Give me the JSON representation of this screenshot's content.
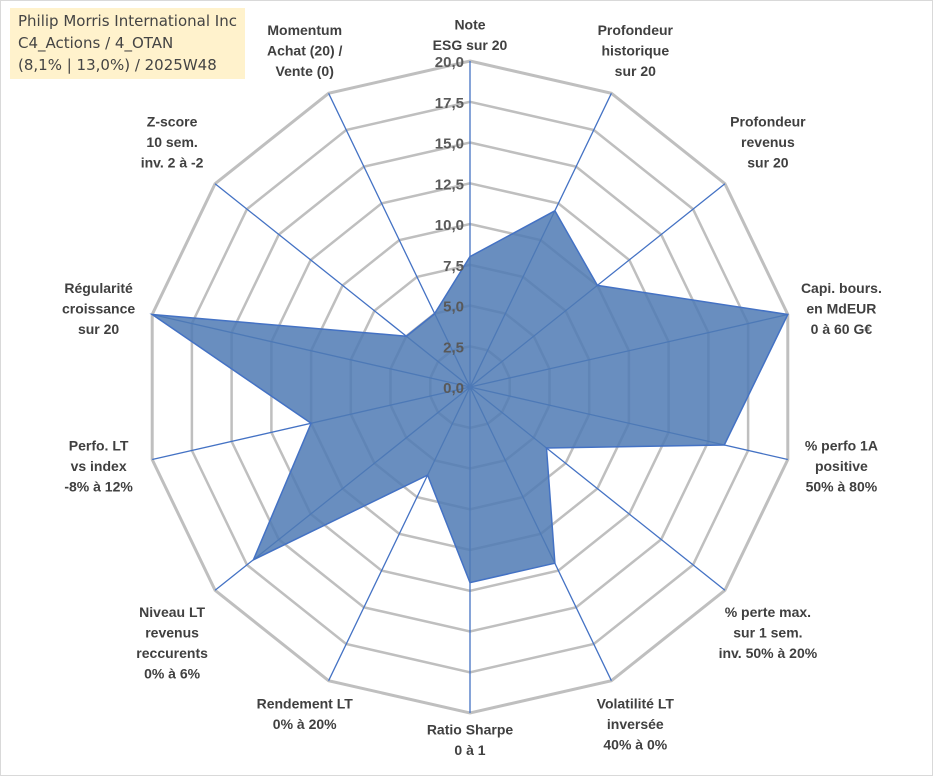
{
  "title": {
    "line1": "Philip Morris International Inc",
    "line2": "C4_Actions / 4_OTAN",
    "line3": "(8,1% | 13,0%) / 2025W48"
  },
  "colors": {
    "grid": "#bfbfbf",
    "spoke": "#4472c4",
    "fill": "#4f7ab4",
    "stroke": "#4472c4"
  },
  "chart_data": {
    "type": "radar",
    "range": [
      0,
      20
    ],
    "tick_step": 2.5,
    "ticks": [
      "0,0",
      "2,5",
      "5,0",
      "7,5",
      "10,0",
      "12,5",
      "15,0",
      "17,5",
      "20,0"
    ],
    "axes": [
      {
        "lines": [
          "Note",
          "ESG sur 20"
        ],
        "value": 8
      },
      {
        "lines": [
          "Profondeur",
          "historique",
          "sur 20"
        ],
        "value": 12
      },
      {
        "lines": [
          "Profondeur",
          "revenus",
          "sur 20"
        ],
        "value": 10
      },
      {
        "lines": [
          "Capi. bours.",
          "en MdEUR",
          "0 à 60 G€"
        ],
        "value": 20
      },
      {
        "lines": [
          "% perfo 1A",
          "positive",
          "50% à 80%"
        ],
        "value": 16
      },
      {
        "lines": [
          "% perte max.",
          "sur 1 sem.",
          "inv. 50% à 20%"
        ],
        "value": 6
      },
      {
        "lines": [
          "Volatilité LT",
          "inversée",
          "40% à 0%"
        ],
        "value": 12
      },
      {
        "lines": [
          "Ratio Sharpe",
          "0 à 1"
        ],
        "value": 12
      },
      {
        "lines": [
          "Rendement LT",
          "0% à 20%"
        ],
        "value": 6
      },
      {
        "lines": [
          "Niveau LT",
          "revenus",
          "reccurents",
          "0% à 6%"
        ],
        "value": 17
      },
      {
        "lines": [
          "Perfo. LT",
          "vs index",
          "-8% à 12%"
        ],
        "value": 10
      },
      {
        "lines": [
          "Régularité",
          "croissance",
          "sur 20"
        ],
        "value": 20
      },
      {
        "lines": [
          "Z-score",
          "10 sem.",
          "inv. 2 à -2"
        ],
        "value": 5
      },
      {
        "lines": [
          "Momentum",
          "Achat (20) /",
          "Vente (0)"
        ],
        "value": 5
      }
    ]
  }
}
